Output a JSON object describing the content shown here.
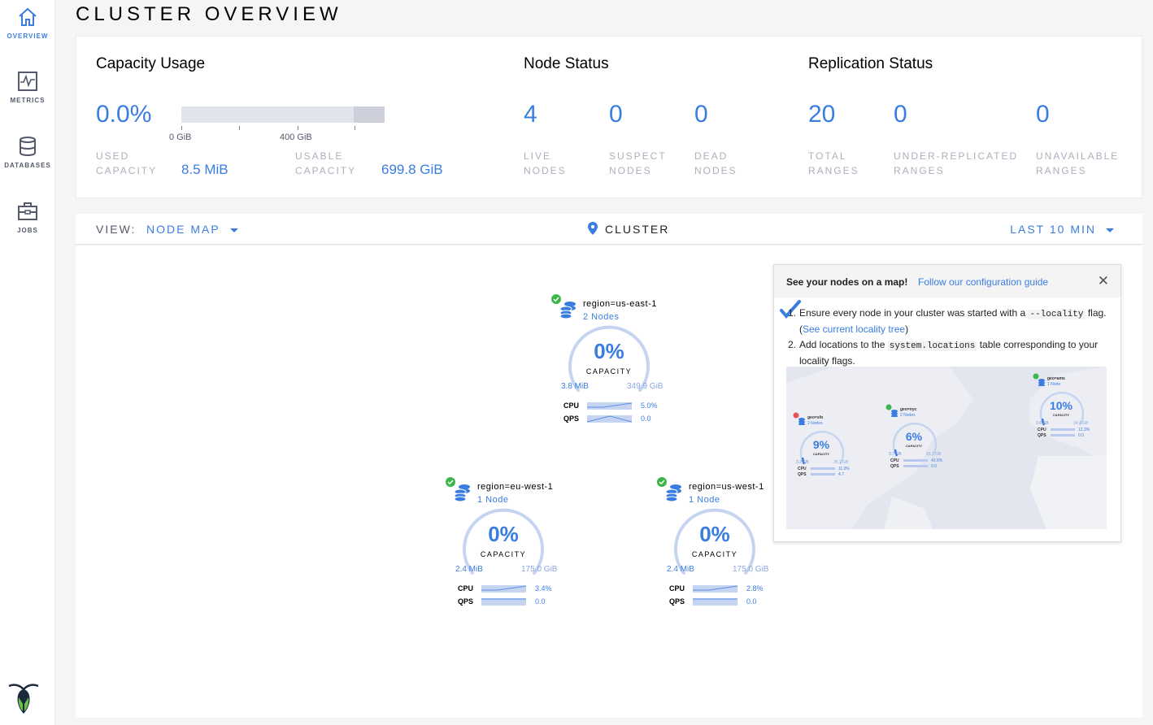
{
  "sidebar": {
    "items": [
      {
        "label": "OVERVIEW",
        "icon": "home-icon",
        "active": true
      },
      {
        "label": "METRICS",
        "icon": "activity-icon"
      },
      {
        "label": "DATABASES",
        "icon": "database-icon"
      },
      {
        "label": "JOBS",
        "icon": "briefcase-icon"
      }
    ],
    "logo": "cockroachdb-logo"
  },
  "page_title": "CLUSTER OVERVIEW",
  "summary": {
    "capacity": {
      "title": "Capacity Usage",
      "percent": "0.0%",
      "bar_used_fraction": 0.0,
      "ticks": [
        "0 GiB",
        "400 GiB"
      ],
      "used_label": [
        "USED",
        "CAPACITY"
      ],
      "used_value": "8.5 MiB",
      "usable_label": [
        "USABLE",
        "CAPACITY"
      ],
      "usable_value": "699.8 GiB"
    },
    "node_status": {
      "title": "Node Status",
      "stats": [
        {
          "value": "4",
          "label": [
            "LIVE",
            "NODES"
          ]
        },
        {
          "value": "0",
          "label": [
            "SUSPECT",
            "NODES"
          ]
        },
        {
          "value": "0",
          "label": [
            "DEAD",
            "NODES"
          ]
        }
      ]
    },
    "replication": {
      "title": "Replication Status",
      "stats": [
        {
          "value": "20",
          "label": [
            "TOTAL",
            "RANGES"
          ]
        },
        {
          "value": "0",
          "label": [
            "UNDER-REPLICATED",
            "RANGES"
          ]
        },
        {
          "value": "0",
          "label": [
            "UNAVAILABLE",
            "RANGES"
          ]
        }
      ]
    }
  },
  "viewbar": {
    "view_label": "VIEW:",
    "view_value": "NODE MAP",
    "breadcrumb": "CLUSTER",
    "time_range": "LAST 10 MIN"
  },
  "nodes": [
    {
      "name": "region=us-east-1",
      "count": "2 Nodes",
      "percent": "0%",
      "cap_label": "CAPACITY",
      "used": "3.8 MiB",
      "total": "349.9 GiB",
      "cpu_label": "CPU",
      "cpu": "5.0%",
      "qps_label": "QPS",
      "qps": "0.0",
      "status": "healthy"
    },
    {
      "name": "region=eu-west-1",
      "count": "1 Node",
      "percent": "0%",
      "cap_label": "CAPACITY",
      "used": "2.4 MiB",
      "total": "175.0 GiB",
      "cpu_label": "CPU",
      "cpu": "3.4%",
      "qps_label": "QPS",
      "qps": "0.0",
      "status": "healthy"
    },
    {
      "name": "region=us-west-1",
      "count": "1 Node",
      "percent": "0%",
      "cap_label": "CAPACITY",
      "used": "2.4 MiB",
      "total": "175.0 GiB",
      "cpu_label": "CPU",
      "cpu": "2.8%",
      "qps_label": "QPS",
      "qps": "0.0",
      "status": "healthy"
    }
  ],
  "popup": {
    "title": "See your nodes on a map!",
    "guide_link": "Follow our configuration guide",
    "step1_pre": "Ensure every node in your cluster was started with a",
    "step1_code": "--locality",
    "step1_mid": "flag. (",
    "step1_link": "See current locality tree",
    "step1_post": ")",
    "step2_pre": "Add locations to the",
    "step2_code": "system.locations",
    "step2_post": "table corresponding to your locality flags.",
    "example_map": [
      {
        "name": "geo=sfo",
        "count": "2 Nodes",
        "percent": "9%",
        "cap_label": "CAPACITY",
        "used": "3.2 GB",
        "total": "35.1 GB",
        "cpu_label": "CPU",
        "cpu": "11.0%",
        "qps_label": "QPS",
        "qps": "4.7",
        "status": "warning"
      },
      {
        "name": "geo=nyc",
        "count": "2 Nodes",
        "percent": "6%",
        "cap_label": "CAPACITY",
        "used": "3.7 GB",
        "total": "65.7 GB",
        "cpu_label": "CPU",
        "cpu": "42.6%",
        "qps_label": "QPS",
        "qps": "0.0",
        "status": "healthy"
      },
      {
        "name": "geo=ams",
        "count": "1 Node",
        "percent": "10%",
        "cap_label": "CAPACITY",
        "used": "3.6 GB",
        "total": "34.4 GB",
        "cpu_label": "CPU",
        "cpu": "12.3%",
        "qps_label": "QPS",
        "qps": "0.0",
        "status": "healthy"
      }
    ]
  },
  "colors": {
    "accent": "#3a7de1",
    "healthy": "#3cb54a",
    "warning": "#e8515a",
    "gauge": "#c5d4f0"
  }
}
